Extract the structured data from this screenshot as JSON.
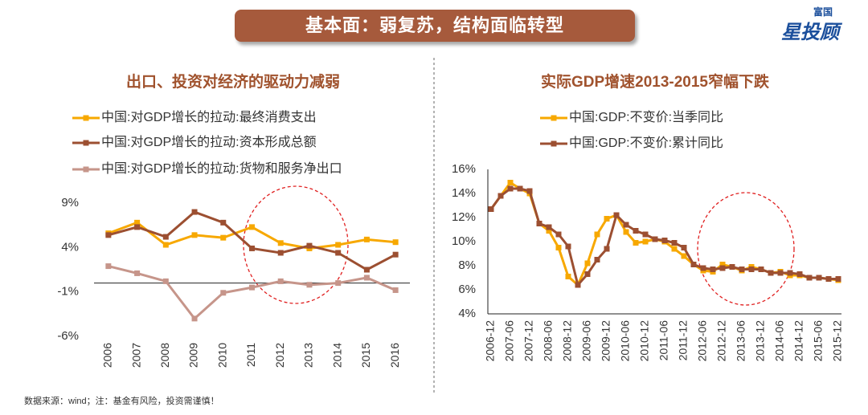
{
  "header": {
    "title": "基本面：弱复苏，结构面临转型"
  },
  "logo": {
    "top": "富国",
    "name": "星投顾"
  },
  "footer": {
    "source": "数据来源：wind；注：基金有风险，投资需谨慎！"
  },
  "chart_data": [
    {
      "type": "line",
      "title": "出口、投资对经济的驱动力减弱",
      "categories": [
        "2006",
        "2007",
        "2008",
        "2009",
        "2010",
        "2011",
        "2012",
        "2013",
        "2014",
        "2015",
        "2016"
      ],
      "series": [
        {
          "name": "中国:对GDP增长的拉动:最终消费支出",
          "color": "#f7a800",
          "values": [
            5.6,
            6.8,
            4.3,
            5.4,
            5.1,
            6.3,
            4.5,
            3.9,
            4.3,
            4.9,
            4.6
          ]
        },
        {
          "name": "中国:对GDP增长的拉动:资本形成总额",
          "color": "#9c4f31",
          "values": [
            5.4,
            6.3,
            5.2,
            8.0,
            6.8,
            3.9,
            3.4,
            4.2,
            3.4,
            1.5,
            3.2
          ]
        },
        {
          "name": "中国:对GDP增长的拉动:货物和服务净出口",
          "color": "#c6958a",
          "values": [
            1.9,
            1.1,
            0.2,
            -4.0,
            -1.1,
            -0.5,
            0.2,
            -0.2,
            0.0,
            0.6,
            -0.8
          ]
        }
      ],
      "ylim": [
        -6,
        9
      ],
      "yticks": [
        {
          "value": -6,
          "label": "-6%"
        },
        {
          "value": -1,
          "label": "-1%"
        },
        {
          "value": 4,
          "label": "4%"
        },
        {
          "value": 9,
          "label": "9%"
        }
      ],
      "grid": false
    },
    {
      "type": "line",
      "title": "实际GDP增速2013-2015窄幅下跌",
      "categories": [
        "2006-12",
        null,
        "2007-06",
        null,
        "2007-12",
        null,
        "2008-06",
        null,
        "2008-12",
        null,
        "2009-06",
        null,
        "2009-12",
        null,
        "2010-06",
        null,
        "2010-12",
        null,
        "2011-06",
        null,
        "2011-12",
        null,
        "2012-06",
        null,
        "2012-12",
        null,
        "2013-06",
        null,
        "2013-12",
        null,
        "2014-06",
        null,
        "2014-12",
        null,
        "2015-06",
        null,
        "2015-12"
      ],
      "series": [
        {
          "name": "中国:GDP:不变价:当季同比",
          "color": "#f7a800",
          "values": [
            12.7,
            13.8,
            14.9,
            14.4,
            14.0,
            11.5,
            10.9,
            9.5,
            7.1,
            6.4,
            8.2,
            10.6,
            11.9,
            12.2,
            10.8,
            9.9,
            10.0,
            10.2,
            10.0,
            9.4,
            8.8,
            8.1,
            7.6,
            7.5,
            8.1,
            7.9,
            7.6,
            7.9,
            7.7,
            7.4,
            7.5,
            7.2,
            7.2,
            7.0,
            7.0,
            6.9,
            6.8
          ]
        },
        {
          "name": "中国:GDP:不变价:累计同比",
          "color": "#9c4f31",
          "values": [
            12.7,
            13.8,
            14.4,
            14.4,
            14.2,
            11.5,
            11.2,
            10.6,
            9.6,
            6.4,
            7.3,
            8.5,
            9.4,
            12.2,
            11.4,
            10.9,
            10.6,
            10.2,
            10.1,
            9.9,
            9.5,
            8.1,
            7.8,
            7.7,
            7.8,
            7.9,
            7.7,
            7.7,
            7.7,
            7.4,
            7.4,
            7.4,
            7.3,
            7.0,
            7.0,
            6.9,
            6.9
          ]
        }
      ],
      "ylim": [
        4,
        16
      ],
      "yticks": [
        {
          "value": 4,
          "label": "4%"
        },
        {
          "value": 6,
          "label": "6%"
        },
        {
          "value": 8,
          "label": "8%"
        },
        {
          "value": 10,
          "label": "10%"
        },
        {
          "value": 12,
          "label": "12%"
        },
        {
          "value": 14,
          "label": "14%"
        },
        {
          "value": 16,
          "label": "16%"
        }
      ],
      "grid": false
    }
  ]
}
